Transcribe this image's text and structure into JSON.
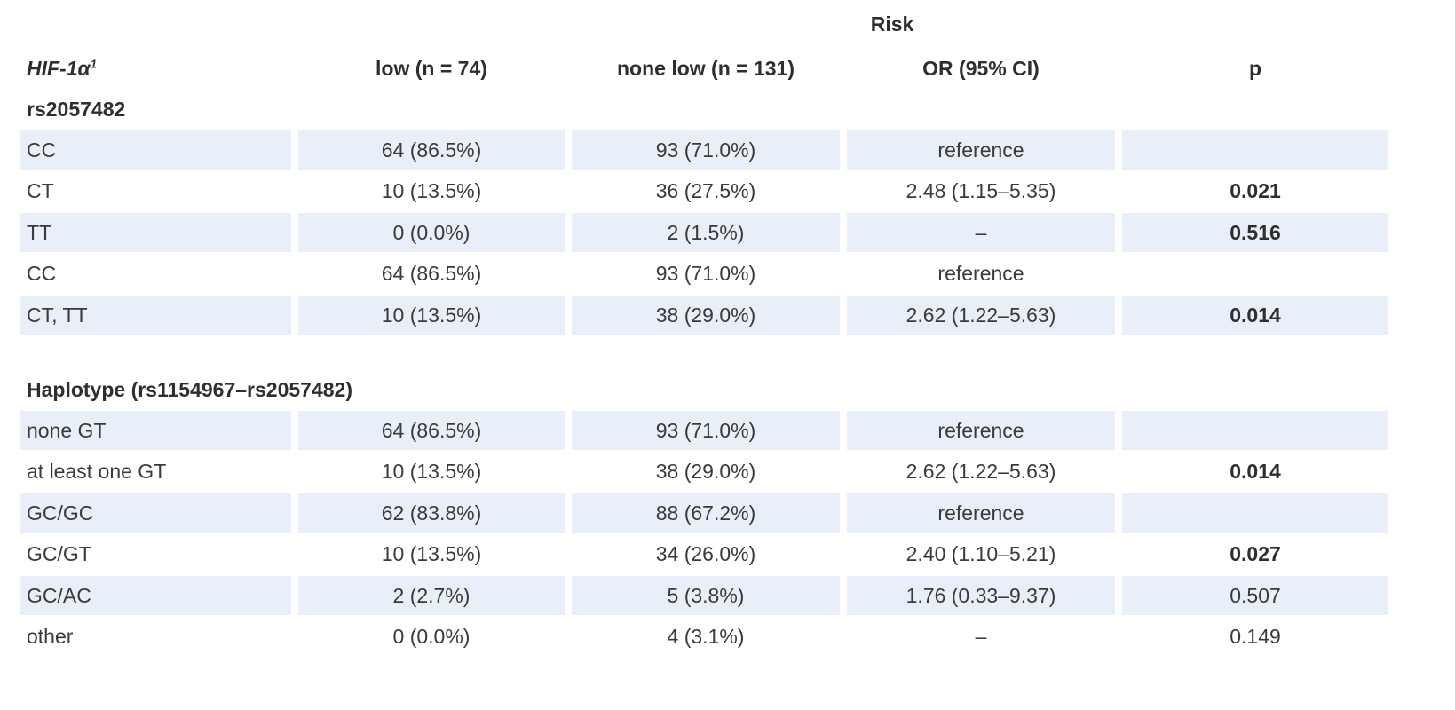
{
  "header": {
    "group_title": "Risk",
    "gene_label": "HIF-1α",
    "gene_superscript": "1",
    "columns": [
      "low (n = 74)",
      "none low (n = 131)",
      "OR (95% CI)",
      "p"
    ]
  },
  "sections": [
    {
      "title": "rs2057482",
      "rows": [
        {
          "label": "CC",
          "low": "64 (86.5%)",
          "none_low": "93 (71.0%)",
          "or": "reference",
          "p": "",
          "p_bold": false,
          "shaded": true
        },
        {
          "label": "CT",
          "low": "10 (13.5%)",
          "none_low": "36 (27.5%)",
          "or": "2.48 (1.15–5.35)",
          "p": "0.021",
          "p_bold": true,
          "shaded": false
        },
        {
          "label": "TT",
          "low": "0 (0.0%)",
          "none_low": "2 (1.5%)",
          "or": "–",
          "p": "0.516",
          "p_bold": true,
          "shaded": true
        },
        {
          "label": "CC",
          "low": "64 (86.5%)",
          "none_low": "93 (71.0%)",
          "or": "reference",
          "p": "",
          "p_bold": false,
          "shaded": false
        },
        {
          "label": "CT, TT",
          "low": "10 (13.5%)",
          "none_low": "38 (29.0%)",
          "or": "2.62 (1.22–5.63)",
          "p": "0.014",
          "p_bold": true,
          "shaded": true
        }
      ]
    },
    {
      "title": "Haplotype (rs1154967–rs2057482)",
      "rows": [
        {
          "label": "none GT",
          "low": "64 (86.5%)",
          "none_low": "93 (71.0%)",
          "or": "reference",
          "p": "",
          "p_bold": false,
          "shaded": true
        },
        {
          "label": "at least one GT",
          "low": "10 (13.5%)",
          "none_low": "38 (29.0%)",
          "or": "2.62 (1.22–5.63)",
          "p": "0.014",
          "p_bold": true,
          "shaded": false
        },
        {
          "label": "GC/GC",
          "low": "62 (83.8%)",
          "none_low": "88 (67.2%)",
          "or": "reference",
          "p": "",
          "p_bold": false,
          "shaded": true
        },
        {
          "label": "GC/GT",
          "low": "10 (13.5%)",
          "none_low": "34 (26.0%)",
          "or": "2.40 (1.10–5.21)",
          "p": "0.027",
          "p_bold": true,
          "shaded": false
        },
        {
          "label": "GC/AC",
          "low": "2 (2.7%)",
          "none_low": "5 (3.8%)",
          "or": "1.76 (0.33–9.37)",
          "p": "0.507",
          "p_bold": false,
          "shaded": true
        },
        {
          "label": "other",
          "low": "0 (0.0%)",
          "none_low": "4 (3.1%)",
          "or": "–",
          "p": "0.149",
          "p_bold": false,
          "shaded": false
        }
      ]
    }
  ]
}
